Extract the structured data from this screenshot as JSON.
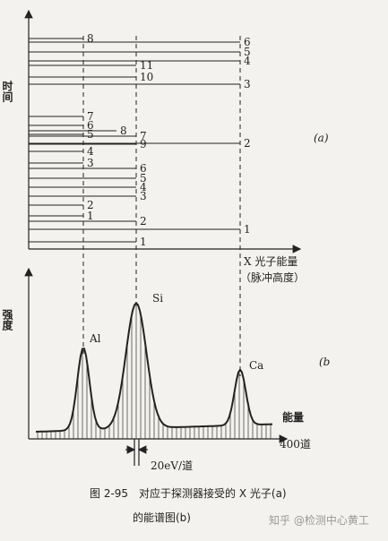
{
  "axis_labels": {
    "time": "时间",
    "energy": "X 光子能量",
    "pulse": "（脉冲高度）",
    "intensity": "强度",
    "energy_b": "能量",
    "channels": "400道",
    "channel_width": "20eV/道"
  },
  "panel_labels": {
    "a": "(a)",
    "b": "(b"
  },
  "events": [
    "8",
    "6",
    "5",
    "4",
    "11",
    "10",
    "3",
    "7",
    "6",
    "5",
    "8",
    "9",
    "7",
    "2",
    "4",
    "3",
    "6",
    "5",
    "4",
    "3",
    "2",
    "1",
    "2",
    "1",
    "1"
  ],
  "peaks": [
    "Al",
    "Si",
    "Ca"
  ],
  "caption": [
    "图 2-95　对应于探测器接受的 X 光子(a)",
    "的能谱图(b)"
  ],
  "watermark": "知乎 @检测中心黄工"
}
